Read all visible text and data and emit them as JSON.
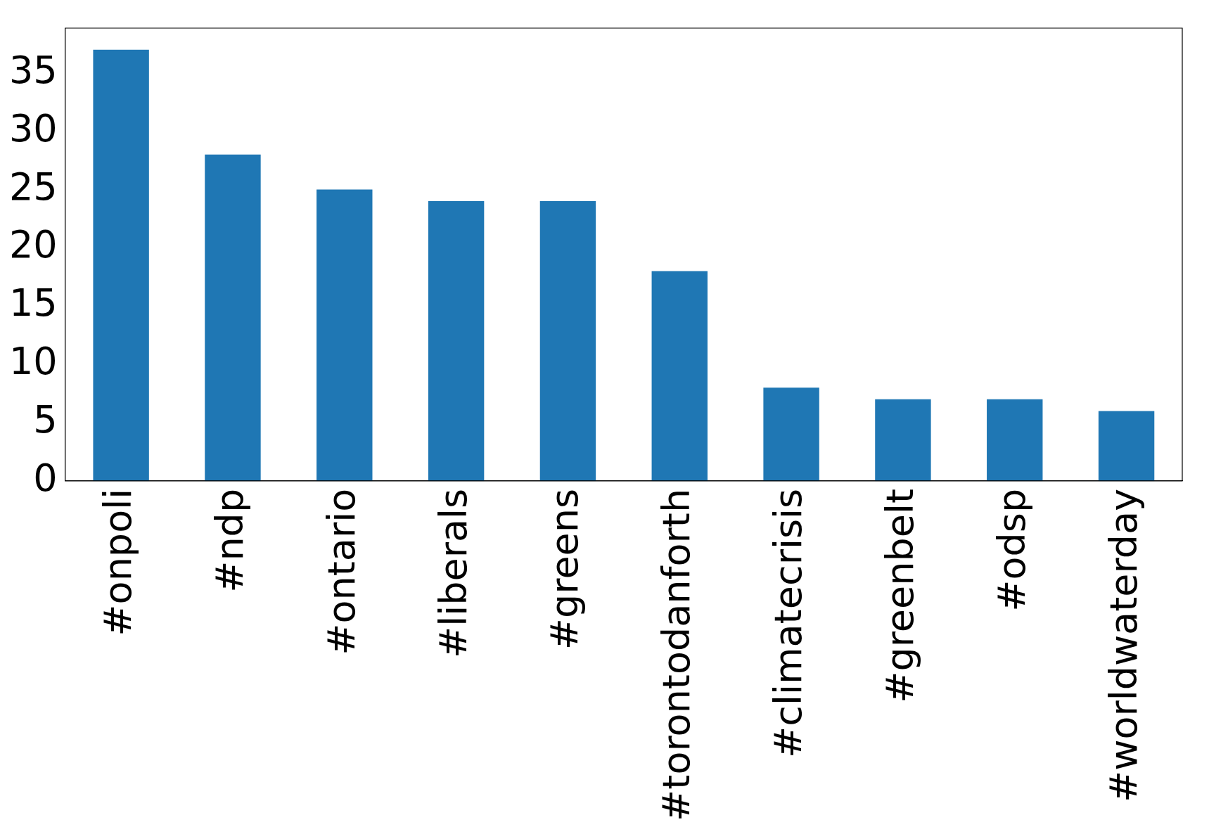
{
  "chart_data": {
    "type": "bar",
    "categories": [
      "#onpoli",
      "#ndp",
      "#ontario",
      "#liberals",
      "#greens",
      "#torontodanforth",
      "#climatecrisis",
      "#greenbelt",
      "#odsp",
      "#worldwaterday"
    ],
    "values": [
      37,
      28,
      25,
      24,
      24,
      18,
      8,
      7,
      7,
      6
    ],
    "color": "#1f77b4",
    "ylim": [
      0,
      38.85
    ],
    "yticks": [
      0,
      5,
      10,
      15,
      20,
      25,
      30,
      35
    ],
    "grid": false,
    "legend": false
  }
}
